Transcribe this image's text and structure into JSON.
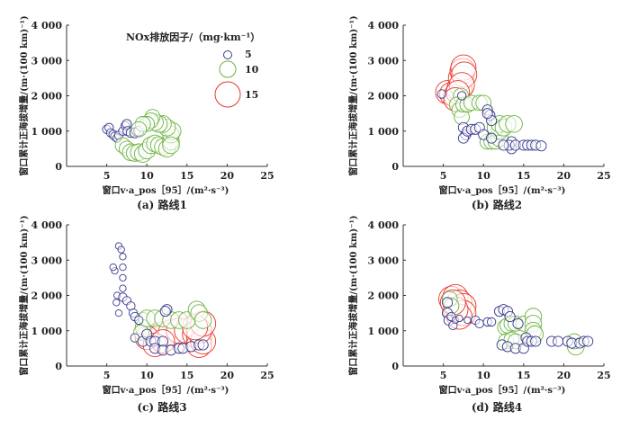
{
  "colors": {
    "low": "#3b3b8f",
    "mid": "#6cb33f",
    "high": "#e8372c"
  },
  "legend": {
    "title": "NOx排放因子/（mg·km⁻¹）",
    "entries": [
      {
        "label": "5",
        "value": 5
      },
      {
        "label": "10",
        "value": 10
      },
      {
        "label": "15",
        "value": 15
      }
    ]
  },
  "chart_data": [
    {
      "type": "scatter",
      "caption": "(a) 路线1",
      "xlabel": "窗口v·a_pos［95］/(m²·s⁻³)",
      "ylabel": "窗口累计正海拔增量/(m·(100 km)⁻¹)",
      "xlim": [
        0,
        25
      ],
      "ylim": [
        0,
        4000
      ],
      "xticks": [
        "5",
        "10",
        "15",
        "20",
        "25"
      ],
      "yticks": [
        "0",
        "1 000",
        "2 000",
        "3 000",
        "4 000"
      ],
      "points": [
        [
          5,
          1050,
          5
        ],
        [
          5.3,
          1100,
          5
        ],
        [
          5.5,
          950,
          5
        ],
        [
          5.8,
          900,
          5
        ],
        [
          6,
          850,
          5
        ],
        [
          6.3,
          800,
          5
        ],
        [
          6.5,
          880,
          5
        ],
        [
          7,
          1000,
          5
        ],
        [
          7.3,
          1150,
          5
        ],
        [
          7.5,
          1200,
          5.5
        ],
        [
          7.6,
          1000,
          5.5
        ],
        [
          8,
          950,
          5.5
        ],
        [
          8.5,
          950,
          6
        ],
        [
          9,
          1000,
          6
        ],
        [
          7,
          600,
          9
        ],
        [
          7.5,
          500,
          9
        ],
        [
          8,
          400,
          10
        ],
        [
          8.5,
          380,
          10
        ],
        [
          9,
          400,
          10
        ],
        [
          9.5,
          350,
          10
        ],
        [
          10,
          450,
          10
        ],
        [
          10.5,
          600,
          10
        ],
        [
          11,
          650,
          10
        ],
        [
          11.5,
          600,
          10
        ],
        [
          12,
          550,
          10
        ],
        [
          12.5,
          500,
          10
        ],
        [
          13,
          700,
          10
        ],
        [
          13,
          900,
          10
        ],
        [
          13.2,
          1000,
          10
        ],
        [
          13,
          600,
          10
        ],
        [
          12.5,
          1100,
          10
        ],
        [
          12,
          1200,
          10
        ],
        [
          11.5,
          1200,
          10
        ],
        [
          11,
          1250,
          10
        ],
        [
          10.7,
          1400,
          9
        ],
        [
          10.5,
          1300,
          9
        ],
        [
          10,
          1200,
          9
        ],
        [
          9.5,
          1200,
          9
        ],
        [
          9,
          1050,
          9
        ]
      ]
    },
    {
      "type": "scatter",
      "caption": "(b) 路线2",
      "xlabel": "窗口v·a_pos［95］/(m²·s⁻³)",
      "ylabel": "窗口累计正海拔增量/(m·(100 km)⁻¹)",
      "xlim": [
        0,
        25
      ],
      "ylim": [
        0,
        4000
      ],
      "xticks": [
        "5",
        "10",
        "15",
        "20",
        "25"
      ],
      "yticks": [
        "0",
        "1 000",
        "2 000",
        "3 000",
        "4 000"
      ],
      "points": [
        [
          5.5,
          2100,
          14
        ],
        [
          6,
          2050,
          14
        ],
        [
          6.5,
          2000,
          14
        ],
        [
          7,
          2200,
          15
        ],
        [
          7.2,
          2500,
          15
        ],
        [
          7.4,
          2700,
          15
        ],
        [
          7.5,
          2800,
          15
        ],
        [
          7.6,
          2600,
          15
        ],
        [
          7.3,
          2300,
          15
        ],
        [
          6.8,
          2100,
          14
        ],
        [
          6.5,
          1900,
          14
        ],
        [
          7.2,
          2000,
          9
        ],
        [
          6.7,
          1750,
          9
        ],
        [
          7,
          1600,
          9
        ],
        [
          7.3,
          1400,
          9
        ],
        [
          7.5,
          1750,
          9
        ],
        [
          8,
          1750,
          9
        ],
        [
          8.5,
          1800,
          9
        ],
        [
          9.5,
          1800,
          9
        ],
        [
          10,
          1800,
          9
        ],
        [
          10.5,
          700,
          9
        ],
        [
          11,
          700,
          9
        ],
        [
          11.5,
          700,
          9
        ],
        [
          12,
          800,
          10
        ],
        [
          12,
          1000,
          10
        ],
        [
          11.5,
          1100,
          10
        ],
        [
          12,
          1200,
          10
        ],
        [
          12.5,
          1100,
          10
        ],
        [
          13,
          1200,
          10
        ],
        [
          13.8,
          1200,
          10
        ],
        [
          4.8,
          2050,
          5
        ],
        [
          7.3,
          2000,
          5
        ],
        [
          7.5,
          1100,
          6
        ],
        [
          7.8,
          900,
          6
        ],
        [
          7.5,
          800,
          6
        ],
        [
          8,
          1000,
          6
        ],
        [
          8.5,
          1050,
          6
        ],
        [
          9,
          1050,
          6
        ],
        [
          10.5,
          1600,
          6
        ],
        [
          10.8,
          1450,
          6
        ],
        [
          11,
          1300,
          6
        ],
        [
          10.5,
          1500,
          6
        ],
        [
          9.5,
          1100,
          6
        ],
        [
          10,
          900,
          6
        ],
        [
          11,
          800,
          6
        ],
        [
          13.5,
          500,
          6
        ],
        [
          13.5,
          700,
          6
        ],
        [
          13.2,
          600,
          6
        ],
        [
          12.5,
          600,
          6
        ],
        [
          14,
          600,
          6
        ],
        [
          15,
          600,
          6
        ],
        [
          15.5,
          600,
          6
        ],
        [
          16,
          600,
          6
        ],
        [
          16.5,
          600,
          6
        ],
        [
          17.2,
          580,
          6
        ]
      ]
    },
    {
      "type": "scatter",
      "caption": "(c) 路线3",
      "xlabel": "窗口v·a_pos［95］/(m²·s⁻³)",
      "ylabel": "窗口累计正海拔增量/(m·(100 km)⁻¹)",
      "xlim": [
        0,
        25
      ],
      "ylim": [
        0,
        4000
      ],
      "xticks": [
        "5",
        "10",
        "15",
        "20",
        "25"
      ],
      "yticks": [
        "0",
        "1 000",
        "2 000",
        "3 000",
        "4 000"
      ],
      "points": [
        [
          11,
          850,
          14
        ],
        [
          12,
          900,
          15
        ],
        [
          13,
          950,
          15
        ],
        [
          14,
          1000,
          15
        ],
        [
          15,
          1000,
          15
        ],
        [
          10,
          800,
          14
        ],
        [
          16,
          900,
          15
        ],
        [
          16.5,
          800,
          15
        ],
        [
          16.5,
          600,
          15
        ],
        [
          17,
          700,
          15
        ],
        [
          16.5,
          1000,
          15
        ],
        [
          17,
          1200,
          15
        ],
        [
          11,
          600,
          14
        ],
        [
          12,
          700,
          14
        ],
        [
          16,
          1100,
          15
        ],
        [
          9.5,
          1300,
          9
        ],
        [
          9.5,
          1100,
          9
        ],
        [
          9.3,
          950,
          9
        ],
        [
          10,
          1350,
          10
        ],
        [
          11,
          1350,
          10
        ],
        [
          12,
          1350,
          10
        ],
        [
          13,
          1300,
          10
        ],
        [
          14,
          1300,
          10
        ],
        [
          15,
          1300,
          10
        ],
        [
          16.2,
          1600,
          10
        ],
        [
          16.5,
          1500,
          10
        ],
        [
          17,
          1300,
          10
        ],
        [
          6.5,
          3400,
          4
        ],
        [
          6.8,
          3300,
          4
        ],
        [
          7,
          3100,
          4
        ],
        [
          7,
          2800,
          4
        ],
        [
          7,
          2500,
          4
        ],
        [
          7,
          2200,
          4
        ],
        [
          6.3,
          2000,
          4
        ],
        [
          6,
          2700,
          4
        ],
        [
          5.8,
          2800,
          4
        ],
        [
          6.2,
          1800,
          4
        ],
        [
          6.5,
          1500,
          4
        ],
        [
          7,
          1950,
          5
        ],
        [
          7.5,
          1850,
          5
        ],
        [
          8,
          1700,
          5
        ],
        [
          8.3,
          1500,
          5
        ],
        [
          8.5,
          1400,
          5
        ],
        [
          9,
          1300,
          5
        ],
        [
          8.5,
          800,
          5
        ],
        [
          9.5,
          700,
          6
        ],
        [
          10,
          900,
          6
        ],
        [
          10.5,
          700,
          6
        ],
        [
          11,
          700,
          6
        ],
        [
          12,
          700,
          6
        ],
        [
          12.5,
          1600,
          6
        ],
        [
          12.3,
          1550,
          6
        ],
        [
          11,
          500,
          6
        ],
        [
          12,
          450,
          6
        ],
        [
          13,
          450,
          6
        ],
        [
          14,
          500,
          6
        ],
        [
          14.5,
          500,
          6
        ],
        [
          15.5,
          550,
          6
        ],
        [
          16.5,
          600,
          6
        ],
        [
          17,
          600,
          6
        ]
      ]
    },
    {
      "type": "scatter",
      "caption": "(d) 路线4",
      "xlabel": "窗口v·a_pos［95］/(m²·s⁻³)",
      "ylabel": "窗口累计正海拔增量/(m·(100 km)⁻¹)",
      "xlim": [
        0,
        25
      ],
      "ylim": [
        0,
        4000
      ],
      "xticks": [
        "5",
        "10",
        "15",
        "20",
        "25"
      ],
      "yticks": [
        "0",
        "1 000",
        "2 000",
        "3 000",
        "4 000"
      ],
      "points": [
        [
          6,
          1900,
          15
        ],
        [
          6.5,
          1950,
          15
        ],
        [
          7,
          1800,
          15
        ],
        [
          7.5,
          1700,
          15
        ],
        [
          7.5,
          1500,
          15
        ],
        [
          7,
          1400,
          15
        ],
        [
          6.5,
          1600,
          15
        ],
        [
          6.2,
          1800,
          15
        ],
        [
          5.8,
          1900,
          9
        ],
        [
          6,
          1700,
          9
        ],
        [
          12.7,
          1100,
          9
        ],
        [
          13,
          1150,
          9
        ],
        [
          13.5,
          1200,
          9
        ],
        [
          14,
          1200,
          9
        ],
        [
          15,
          1200,
          9
        ],
        [
          16.2,
          1400,
          10
        ],
        [
          16.2,
          1200,
          10
        ],
        [
          16.2,
          1000,
          10
        ],
        [
          16.4,
          900,
          10
        ],
        [
          12.8,
          700,
          9
        ],
        [
          13.5,
          750,
          9
        ],
        [
          14,
          700,
          9
        ],
        [
          21.5,
          550,
          10
        ],
        [
          21.3,
          700,
          9
        ],
        [
          5.5,
          1800,
          6
        ],
        [
          5.5,
          1500,
          6
        ],
        [
          5.7,
          1300,
          6
        ],
        [
          6.2,
          1150,
          5
        ],
        [
          6,
          1400,
          5
        ],
        [
          6.5,
          1300,
          4
        ],
        [
          7,
          1350,
          4
        ],
        [
          8,
          1300,
          4
        ],
        [
          9,
          1300,
          5
        ],
        [
          9.5,
          1200,
          5
        ],
        [
          10.5,
          1250,
          5
        ],
        [
          11,
          1250,
          5
        ],
        [
          12,
          1550,
          6
        ],
        [
          12.5,
          1600,
          6
        ],
        [
          13,
          1550,
          6
        ],
        [
          13.3,
          1400,
          6
        ],
        [
          14.3,
          1200,
          6
        ],
        [
          12.3,
          600,
          6
        ],
        [
          13,
          550,
          6
        ],
        [
          14,
          500,
          6
        ],
        [
          15,
          500,
          6
        ],
        [
          15.3,
          800,
          6
        ],
        [
          15.5,
          700,
          6
        ],
        [
          16,
          700,
          6
        ],
        [
          16.5,
          700,
          6
        ],
        [
          18.5,
          700,
          6
        ],
        [
          19.3,
          700,
          6
        ],
        [
          20.5,
          700,
          6
        ],
        [
          21,
          650,
          6
        ],
        [
          22,
          650,
          6
        ],
        [
          22.5,
          700,
          6
        ],
        [
          23,
          700,
          6
        ]
      ]
    }
  ]
}
